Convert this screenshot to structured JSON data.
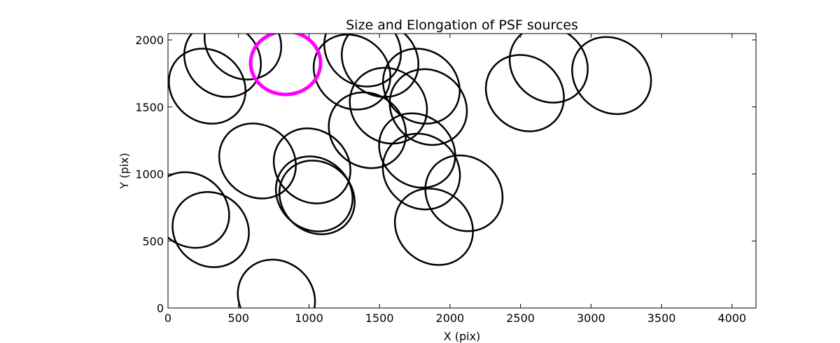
{
  "chart_data": {
    "type": "scatter",
    "marker": "ellipse",
    "title": "Size and Elongation of PSF sources",
    "xlabel": "X (pix)",
    "ylabel": "Y (pix)",
    "xlim": [
      0,
      4170
    ],
    "ylim": [
      0,
      2047
    ],
    "xticks": [
      0,
      500,
      1000,
      1500,
      2000,
      2500,
      3000,
      3500,
      4000
    ],
    "yticks": [
      0,
      500,
      1000,
      1500,
      2000
    ],
    "grid": false,
    "colors": {
      "default": "#000000",
      "highlight": "#ff00ff"
    },
    "ellipses": [
      {
        "x": 531,
        "y": 1984,
        "width": 570,
        "height": 530,
        "angle": -40
      },
      {
        "x": 387,
        "y": 1854,
        "width": 570,
        "height": 530,
        "angle": -40
      },
      {
        "x": 278,
        "y": 1655,
        "width": 570,
        "height": 530,
        "angle": -40
      },
      {
        "x": 1305,
        "y": 1760,
        "width": 570,
        "height": 530,
        "angle": -40
      },
      {
        "x": 1380,
        "y": 1932,
        "width": 570,
        "height": 530,
        "angle": -40
      },
      {
        "x": 1504,
        "y": 1854,
        "width": 570,
        "height": 530,
        "angle": -40
      },
      {
        "x": 1563,
        "y": 1509,
        "width": 570,
        "height": 540,
        "angle": -40
      },
      {
        "x": 1797,
        "y": 1655,
        "width": 570,
        "height": 530,
        "angle": -40
      },
      {
        "x": 1846,
        "y": 1499,
        "width": 570,
        "height": 540,
        "angle": -40
      },
      {
        "x": 1414,
        "y": 1326,
        "width": 570,
        "height": 540,
        "angle": -40
      },
      {
        "x": 1767,
        "y": 1175,
        "width": 570,
        "height": 520,
        "angle": -40
      },
      {
        "x": 1797,
        "y": 1018,
        "width": 570,
        "height": 540,
        "angle": -40
      },
      {
        "x": 2099,
        "y": 856,
        "width": 570,
        "height": 540,
        "angle": -40
      },
      {
        "x": 1886,
        "y": 606,
        "width": 580,
        "height": 540,
        "angle": -40
      },
      {
        "x": 1022,
        "y": 1060,
        "width": 570,
        "height": 530,
        "angle": -40
      },
      {
        "x": 635,
        "y": 1097,
        "width": 570,
        "height": 530,
        "angle": -40
      },
      {
        "x": 1037,
        "y": 851,
        "width": 570,
        "height": 530,
        "angle": -40
      },
      {
        "x": 1057,
        "y": 825,
        "width": 560,
        "height": 520,
        "angle": -40
      },
      {
        "x": 159,
        "y": 731,
        "width": 580,
        "height": 530,
        "angle": -40
      },
      {
        "x": 303,
        "y": 585,
        "width": 560,
        "height": 540,
        "angle": -40
      },
      {
        "x": 769,
        "y": 78,
        "width": 570,
        "height": 540,
        "angle": -40
      },
      {
        "x": 2531,
        "y": 1603,
        "width": 580,
        "height": 540,
        "angle": -40
      },
      {
        "x": 2700,
        "y": 1817,
        "width": 580,
        "height": 540,
        "angle": -40
      },
      {
        "x": 3146,
        "y": 1734,
        "width": 590,
        "height": 540,
        "angle": -40
      },
      {
        "x": 834,
        "y": 1828,
        "width": 496,
        "height": 470,
        "angle": 0,
        "highlight": true
      }
    ]
  }
}
